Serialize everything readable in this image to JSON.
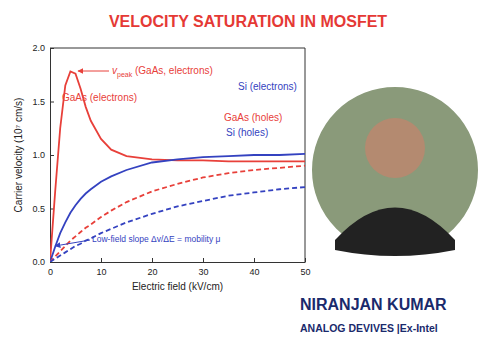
{
  "chart_data": {
    "type": "line",
    "title": "VELOCITY SATURATION IN MOSFET",
    "x_label": "Electric field (kV/cm)",
    "y_label": "Carrier velocity (10⁷ cm/s)",
    "x": [
      0,
      1,
      2,
      3,
      4,
      5,
      6,
      7,
      8,
      10,
      12,
      15,
      20,
      25,
      30,
      35,
      40,
      45,
      50
    ],
    "series": [
      {
        "name": "GaAs (electrons)",
        "color": "#e8403a",
        "line_style": "solid",
        "values": [
          0,
          0.65,
          1.25,
          1.65,
          1.78,
          1.76,
          1.62,
          1.45,
          1.32,
          1.15,
          1.05,
          0.99,
          0.96,
          0.95,
          0.95,
          0.94,
          0.94,
          0.94,
          0.94
        ]
      },
      {
        "name": "Si (electrons)",
        "color": "#3442c0",
        "line_style": "solid",
        "values": [
          0,
          0.14,
          0.27,
          0.37,
          0.46,
          0.53,
          0.59,
          0.64,
          0.68,
          0.75,
          0.8,
          0.86,
          0.93,
          0.96,
          0.98,
          0.99,
          1.0,
          1.0,
          1.01
        ]
      },
      {
        "name": "GaAs (holes)",
        "color": "#e8403a",
        "line_style": "dashed",
        "values": [
          0,
          0.05,
          0.1,
          0.15,
          0.2,
          0.24,
          0.28,
          0.32,
          0.35,
          0.42,
          0.48,
          0.56,
          0.66,
          0.73,
          0.79,
          0.83,
          0.86,
          0.88,
          0.9
        ]
      },
      {
        "name": "Si (holes)",
        "color": "#3442c0",
        "line_style": "dashed",
        "values": [
          0,
          0.03,
          0.06,
          0.09,
          0.12,
          0.15,
          0.17,
          0.2,
          0.22,
          0.27,
          0.31,
          0.37,
          0.45,
          0.52,
          0.57,
          0.62,
          0.65,
          0.68,
          0.7
        ]
      }
    ],
    "xlim": [
      0,
      50
    ],
    "xticks": [
      0,
      10,
      20,
      30,
      40,
      50
    ],
    "ylim": [
      0,
      2
    ],
    "yticks": [
      {
        "value": 0,
        "label": "0.0"
      },
      {
        "value": 0.5,
        "label": "0.5"
      },
      {
        "value": 1,
        "label": "1.0"
      },
      {
        "value": 1.5,
        "label": "1.5"
      },
      {
        "value": 2,
        "label": "2.0"
      }
    ],
    "annotations": [
      {
        "text": "v",
        "subscript": "peak",
        "suffix": " (GaAs, electrons)"
      },
      {
        "text": "Low-field slope Δv/ΔE = mobility μ"
      }
    ]
  },
  "caption": {
    "name": "NIRANJAN KUMAR",
    "affiliation": "ANALOG DEVIVES |Ex-Intel"
  }
}
